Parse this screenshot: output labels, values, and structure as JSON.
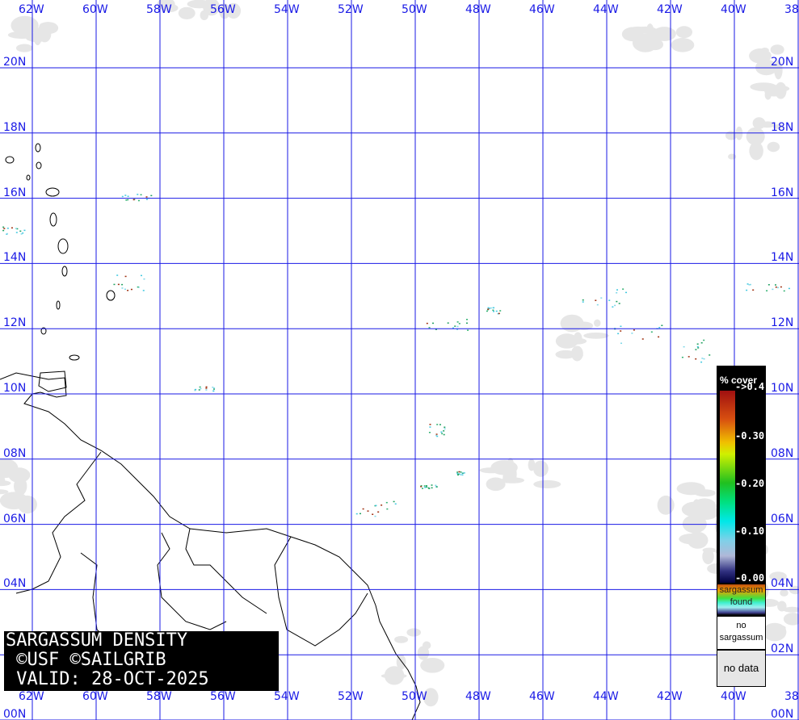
{
  "map": {
    "longitude_labels": [
      "62W",
      "60W",
      "58W",
      "56W",
      "54W",
      "52W",
      "50W",
      "48W",
      "46W",
      "44W",
      "42W",
      "40W",
      "38"
    ],
    "latitude_labels": [
      "20N",
      "18N",
      "16N",
      "14N",
      "12N",
      "10N",
      "08N",
      "06N",
      "04N",
      "02N",
      "00N"
    ],
    "grid_color": "#1a1ae6",
    "land_outline_color": "#000000",
    "cloud_color": "#e6e6e6"
  },
  "title_box": {
    "line1": "SARGASSUM DENSITY",
    "line2": " ©USF ©SAILGRIB",
    "line3": " VALID: 28-OCT-2025"
  },
  "legend": {
    "header": "% cover",
    "ticks": [
      "->0.4",
      "-0.30",
      "-0.20",
      "-0.10",
      "-0.00"
    ],
    "found_label_1": "sargassum",
    "found_label_2": "found",
    "no_sargassum_1": "no",
    "no_sargassum_2": "sargassum",
    "no_data": "no data"
  }
}
